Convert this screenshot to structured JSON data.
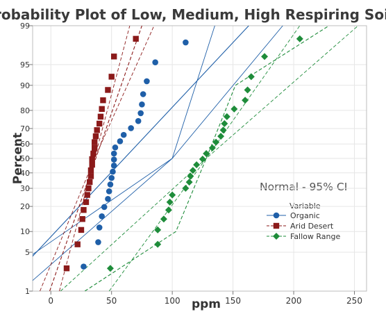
{
  "chart_data": {
    "type": "scatter",
    "title": "Probability Plot of Low, Medium, High Respiring Soils",
    "xlabel": "ppm",
    "ylabel": "Percent",
    "x_scale": "linear",
    "y_scale": "normal-probability",
    "xlim": [
      -15,
      260
    ],
    "ylim": [
      1,
      99
    ],
    "x_ticks": [
      0,
      50,
      100,
      150,
      200,
      250
    ],
    "y_ticks": [
      1,
      5,
      10,
      20,
      30,
      40,
      50,
      60,
      70,
      80,
      90,
      95,
      99
    ],
    "grid": true,
    "annotation": "Normal - 95% CI",
    "legend": {
      "title": "Variable",
      "placement": "right",
      "entries": [
        "Organic",
        "Arid Desert",
        "Fallow Range"
      ]
    },
    "series": [
      {
        "name": "Organic",
        "color": "#1f5fa8",
        "marker": "circle",
        "line_style": "solid",
        "x": [
          27,
          39,
          40,
          42,
          44,
          47,
          48,
          49,
          50,
          51,
          52,
          52,
          52,
          53,
          57,
          60,
          66,
          72,
          74,
          75,
          76,
          79,
          86,
          111
        ],
        "y": [
          2.9,
          7.1,
          11.3,
          15.5,
          19.7,
          23.9,
          28.2,
          32.4,
          36.6,
          40.8,
          45.0,
          49.2,
          53.4,
          57.6,
          61.8,
          66.0,
          70.2,
          74.4,
          78.6,
          82.8,
          87.0,
          91.2,
          95.4,
          97.9
        ],
        "fit_center": [
          [
            -42,
            1
          ],
          [
            163,
            99
          ]
        ],
        "fit_lower": [
          [
            -59,
            1
          ],
          [
            100,
            50
          ],
          [
            135,
            99
          ]
        ],
        "fit_upper": [
          [
            -25,
            1
          ],
          [
            100,
            50
          ],
          [
            191,
            99
          ]
        ]
      },
      {
        "name": "Arid Desert",
        "color": "#8b1a1a",
        "marker": "square",
        "line_style": "dashed",
        "x": [
          13,
          22,
          25,
          26,
          27,
          29,
          30,
          31,
          32,
          33,
          33,
          34,
          34,
          35,
          36,
          36,
          37,
          38,
          40,
          41,
          42,
          43,
          47,
          50,
          52,
          70
        ],
        "y": [
          2.7,
          6.6,
          10.5,
          14.4,
          18.3,
          22.2,
          26.1,
          30.0,
          33.9,
          37.8,
          41.7,
          45.6,
          49.5,
          53.4,
          57.3,
          61.2,
          65.1,
          69.0,
          72.9,
          76.8,
          80.7,
          84.6,
          88.5,
          92.4,
          96.3,
          98.2
        ],
        "fit_center": [
          [
            -1,
            1
          ],
          [
            75,
            99
          ]
        ],
        "fit_lower": [
          [
            -9,
            1
          ],
          [
            36,
            50
          ],
          [
            65,
            99
          ]
        ],
        "fit_upper": [
          [
            7,
            1
          ],
          [
            36,
            50
          ],
          [
            85,
            99
          ]
        ]
      },
      {
        "name": "Fallow Range",
        "color": "#1e8c3a",
        "marker": "diamond",
        "line_style": "dashed",
        "x": [
          49,
          88,
          88,
          93,
          97,
          98,
          100,
          111,
          114,
          115,
          117,
          120,
          125,
          128,
          133,
          136,
          140,
          142,
          143,
          145,
          151,
          160,
          162,
          165,
          176,
          205
        ],
        "y": [
          2.7,
          6.6,
          10.5,
          14.4,
          18.3,
          22.2,
          26.1,
          30.0,
          33.9,
          37.8,
          41.7,
          45.6,
          49.5,
          53.4,
          57.3,
          61.2,
          65.1,
          69.0,
          72.9,
          76.8,
          80.7,
          84.6,
          88.5,
          92.4,
          96.3,
          98.2
        ],
        "fit_center": [
          [
            28,
            1
          ],
          [
            103,
            10
          ],
          [
            128,
            50
          ],
          [
            152,
            90
          ],
          [
            229,
            99
          ]
        ],
        "fit_lower": [
          [
            8,
            1
          ],
          [
            128,
            50
          ],
          [
            205,
            99
          ]
        ],
        "fit_upper": [
          [
            48,
            1
          ],
          [
            128,
            50
          ],
          [
            253,
            99
          ]
        ]
      }
    ]
  }
}
